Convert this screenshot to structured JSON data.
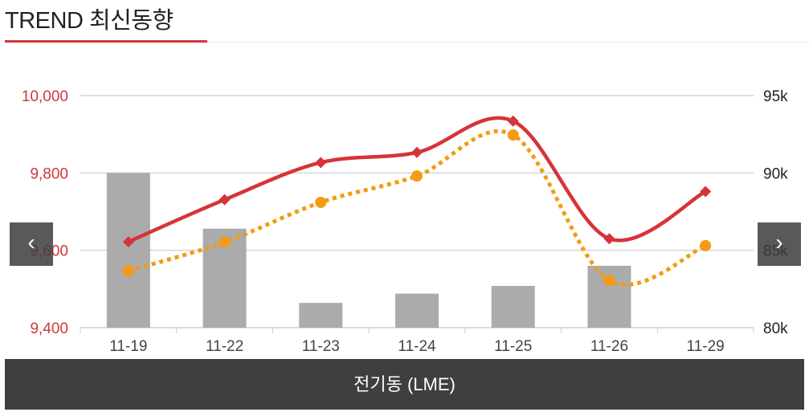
{
  "header": {
    "title": "TREND 최신동향"
  },
  "footer": {
    "label": "전기동 (LME)"
  },
  "nav": {
    "prev_glyph": "‹",
    "next_glyph": "›"
  },
  "colors": {
    "accent": "#d2373c",
    "line_left": "#d63438",
    "line_right": "#f59a12",
    "bar": "#ababab"
  },
  "chart_data": {
    "type": "bar",
    "categories": [
      "11-19",
      "11-22",
      "11-23",
      "11-24",
      "11-25",
      "11-26",
      "11-29"
    ],
    "y_left": {
      "ticks": [
        "10,000",
        "9,800",
        "9,600",
        "9,400"
      ],
      "ylim": [
        9400,
        10000
      ]
    },
    "y_right": {
      "ticks": [
        "95k",
        "90k",
        "85k",
        "80k"
      ],
      "ylim": [
        80,
        95
      ]
    },
    "bars": {
      "axis": "right",
      "values": [
        90.0,
        86.4,
        81.6,
        82.2,
        82.7,
        84.0,
        null
      ]
    },
    "lines": [
      {
        "axis": "left",
        "marker": "diamond",
        "style": "solid",
        "values": [
          9622,
          9731,
          9827,
          9853,
          9934,
          9630,
          9752
        ]
      },
      {
        "axis": "left",
        "marker": "circle",
        "style": "dotted",
        "values": [
          9547,
          9621,
          9724,
          9792,
          9898,
          9522,
          9612
        ]
      }
    ],
    "grid": true
  }
}
